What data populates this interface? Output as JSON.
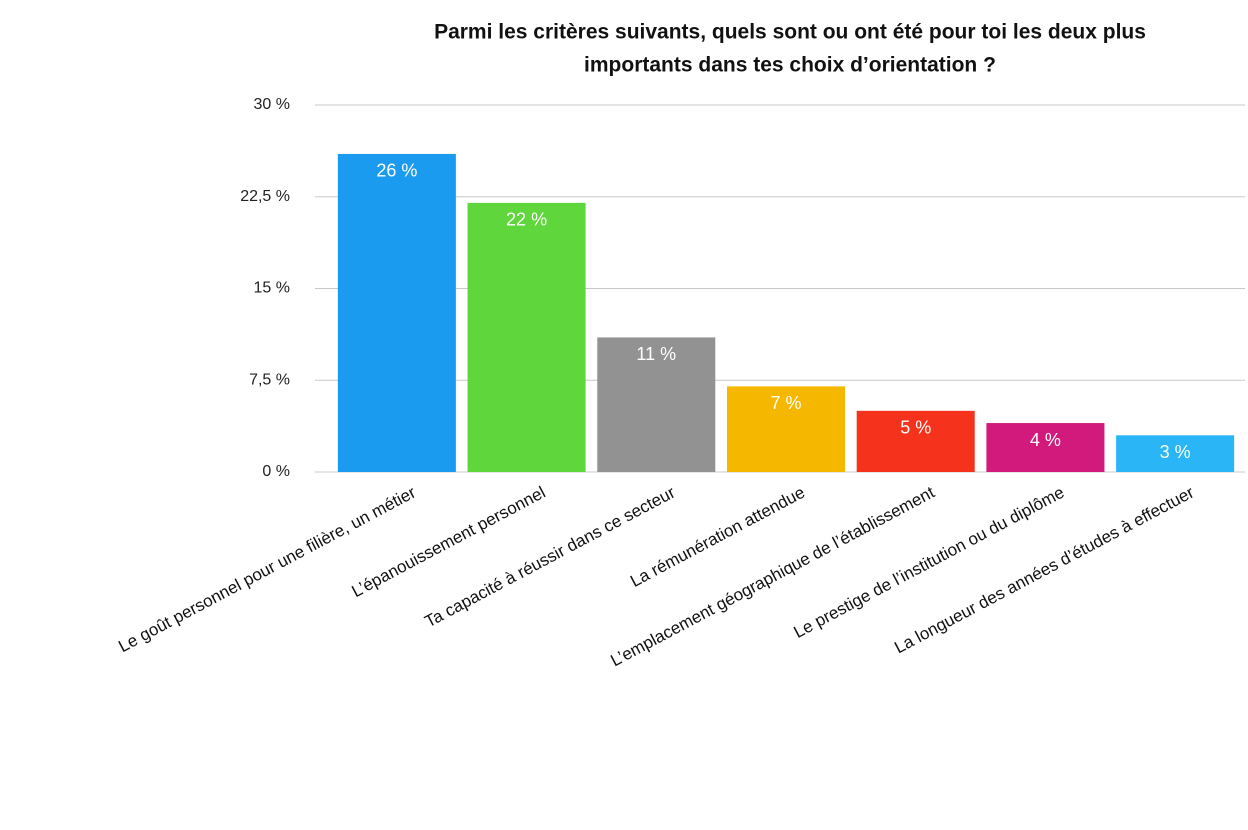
{
  "chart_data": {
    "type": "bar",
    "title": "Parmi les critères suivants, quels sont ou ont été pour toi les deux plus importants dans tes choix d’orientation ?",
    "title_lines": [
      "Parmi les critères suivants, quels sont ou ont été pour toi les deux plus",
      "importants dans tes choix d’orientation ?"
    ],
    "categories": [
      "Le goût personnel pour une filière, un métier",
      "L’épanouissement personnel",
      "Ta capacité à réussir dans ce secteur",
      "La rémunération attendue",
      "L’emplacement géographique de l’établissement",
      "Le prestige de l’institution ou du diplôme",
      "La longueur des années d’études à effectuer"
    ],
    "values": [
      26,
      22,
      11,
      7,
      5,
      4,
      3
    ],
    "value_labels": [
      "26 %",
      "22 %",
      "11 %",
      "7 %",
      "5 %",
      "4 %",
      "3 %"
    ],
    "colors": [
      "#1b9bf0",
      "#5ed63c",
      "#929292",
      "#f5b700",
      "#f5321c",
      "#d21a7c",
      "#2ab6f6"
    ],
    "ylim": [
      0,
      30
    ],
    "yticks": [
      {
        "value": 0,
        "label": "0 %"
      },
      {
        "value": 7.5,
        "label": "7,5 %"
      },
      {
        "value": 15,
        "label": "15 %"
      },
      {
        "value": 22.5,
        "label": "22,5 %"
      },
      {
        "value": 30,
        "label": "30 %"
      }
    ],
    "grid": true
  }
}
